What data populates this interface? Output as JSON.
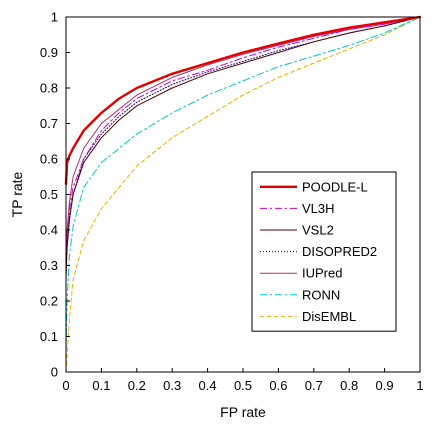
{
  "chart_data": {
    "type": "line",
    "title": "",
    "xlabel": "FP rate",
    "ylabel": "TP rate",
    "xlim": [
      0,
      1
    ],
    "ylim": [
      0,
      1
    ],
    "xticks": [
      {
        "value": 0,
        "label": "0"
      },
      {
        "value": 0.1,
        "label": "0.1"
      },
      {
        "value": 0.2,
        "label": "0.2"
      },
      {
        "value": 0.3,
        "label": "0.3"
      },
      {
        "value": 0.4,
        "label": "0.4"
      },
      {
        "value": 0.5,
        "label": "0.5"
      },
      {
        "value": 0.6,
        "label": "0.6"
      },
      {
        "value": 0.7,
        "label": "0.7"
      },
      {
        "value": 0.8,
        "label": "0.8"
      },
      {
        "value": 0.9,
        "label": "0.9"
      },
      {
        "value": 1,
        "label": "1"
      }
    ],
    "yticks": [
      {
        "value": 0,
        "label": "0"
      },
      {
        "value": 0.1,
        "label": "0.1"
      },
      {
        "value": 0.2,
        "label": "0.2"
      },
      {
        "value": 0.3,
        "label": "0.3"
      },
      {
        "value": 0.4,
        "label": "0.4"
      },
      {
        "value": 0.5,
        "label": "0.5"
      },
      {
        "value": 0.6,
        "label": "0.6"
      },
      {
        "value": 0.7,
        "label": "0.7"
      },
      {
        "value": 0.8,
        "label": "0.8"
      },
      {
        "value": 0.9,
        "label": "0.9"
      },
      {
        "value": 1,
        "label": "1"
      }
    ],
    "grid": false,
    "legend_position": "center-right",
    "series": [
      {
        "name": "POODLE-L",
        "color": "#e00000",
        "dash": "solid",
        "width": "thick",
        "x": [
          0,
          0.003,
          0.01,
          0.02,
          0.05,
          0.1,
          0.15,
          0.2,
          0.3,
          0.4,
          0.5,
          0.6,
          0.7,
          0.8,
          0.9,
          1.0
        ],
        "y": [
          0.53,
          0.59,
          0.61,
          0.63,
          0.68,
          0.73,
          0.77,
          0.8,
          0.84,
          0.87,
          0.9,
          0.925,
          0.95,
          0.97,
          0.985,
          1.0
        ]
      },
      {
        "name": "VL3H",
        "color": "#cc00cc",
        "dash": "dashdot",
        "width": "thin",
        "x": [
          0,
          0.003,
          0.01,
          0.02,
          0.05,
          0.1,
          0.15,
          0.2,
          0.3,
          0.4,
          0.5,
          0.6,
          0.7,
          0.8,
          0.9,
          1.0
        ],
        "y": [
          0.33,
          0.39,
          0.46,
          0.52,
          0.6,
          0.68,
          0.73,
          0.77,
          0.82,
          0.85,
          0.885,
          0.915,
          0.94,
          0.965,
          0.98,
          1.0
        ]
      },
      {
        "name": "VSL2",
        "color": "#5a0000",
        "dash": "solid",
        "width": "thin",
        "x": [
          0,
          0.003,
          0.01,
          0.02,
          0.05,
          0.1,
          0.15,
          0.2,
          0.3,
          0.4,
          0.5,
          0.6,
          0.7,
          0.8,
          0.9,
          1.0
        ],
        "y": [
          0.26,
          0.35,
          0.43,
          0.5,
          0.59,
          0.66,
          0.71,
          0.75,
          0.8,
          0.84,
          0.87,
          0.9,
          0.93,
          0.955,
          0.975,
          1.0
        ]
      },
      {
        "name": "DISOPRED2",
        "color": "#000080",
        "dash": "dotted",
        "width": "thin",
        "x": [
          0,
          0.003,
          0.01,
          0.02,
          0.05,
          0.1,
          0.15,
          0.2,
          0.3,
          0.4,
          0.5,
          0.6,
          0.7,
          0.8,
          0.9,
          1.0
        ],
        "y": [
          0.3,
          0.37,
          0.44,
          0.5,
          0.6,
          0.67,
          0.72,
          0.76,
          0.81,
          0.845,
          0.875,
          0.905,
          0.93,
          0.955,
          0.975,
          1.0
        ]
      },
      {
        "name": "IUPred",
        "color": "#b03070",
        "dash": "solid",
        "width": "thin",
        "x": [
          0,
          0.003,
          0.01,
          0.02,
          0.05,
          0.1,
          0.15,
          0.2,
          0.3,
          0.4,
          0.5,
          0.6,
          0.7,
          0.8,
          0.9,
          1.0
        ],
        "y": [
          0.32,
          0.4,
          0.48,
          0.55,
          0.63,
          0.7,
          0.74,
          0.78,
          0.83,
          0.865,
          0.895,
          0.92,
          0.945,
          0.965,
          0.98,
          1.0
        ]
      },
      {
        "name": "RONN",
        "color": "#00c8c8",
        "dash": "dashdot",
        "width": "thin",
        "x": [
          0,
          0.003,
          0.01,
          0.02,
          0.05,
          0.1,
          0.15,
          0.2,
          0.3,
          0.4,
          0.5,
          0.6,
          0.7,
          0.8,
          0.9,
          1.0
        ],
        "y": [
          0.06,
          0.2,
          0.33,
          0.41,
          0.52,
          0.59,
          0.63,
          0.67,
          0.73,
          0.78,
          0.82,
          0.86,
          0.89,
          0.92,
          0.955,
          1.0
        ]
      },
      {
        "name": "DisEMBL",
        "color": "#f0b000",
        "dash": "dashed",
        "width": "thin",
        "x": [
          0,
          0.01,
          0.02,
          0.05,
          0.1,
          0.15,
          0.2,
          0.3,
          0.4,
          0.5,
          0.6,
          0.7,
          0.8,
          0.9,
          1.0
        ],
        "y": [
          0.0,
          0.15,
          0.26,
          0.37,
          0.46,
          0.52,
          0.58,
          0.66,
          0.72,
          0.78,
          0.83,
          0.87,
          0.91,
          0.95,
          1.0
        ]
      }
    ]
  }
}
